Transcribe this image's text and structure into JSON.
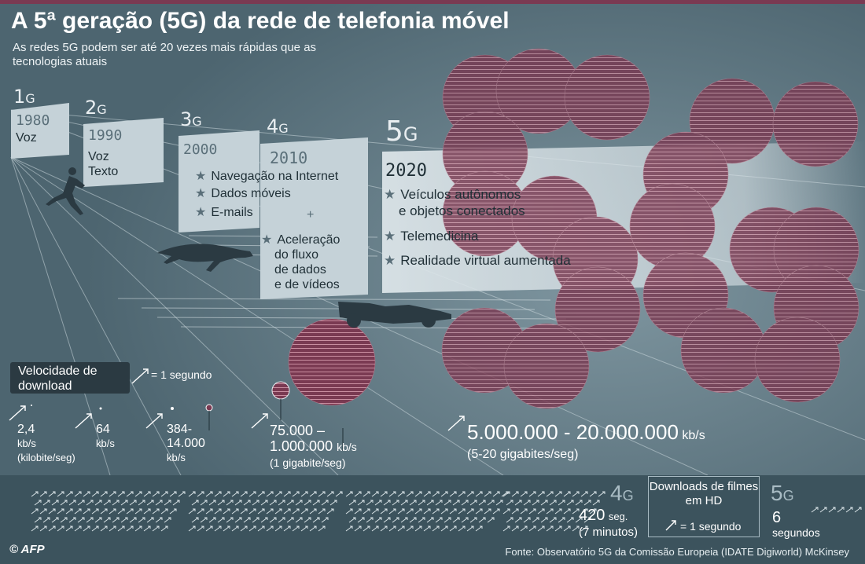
{
  "title": "A 5ª geração (5G) da rede de telefonia móvel",
  "subtitle": "As redes 5G podem ser até 20 vezes mais rápidas que as tecnologias atuais",
  "generations": [
    {
      "num": "1",
      "g": "G",
      "year": "1980",
      "uses": [
        "Voz"
      ]
    },
    {
      "num": "2",
      "g": "G",
      "year": "1990",
      "uses": [
        "Voz",
        "Texto"
      ]
    },
    {
      "num": "3",
      "g": "G",
      "year": "2000",
      "uses": [
        "Navegação na Internet",
        "Dados móveis",
        "E-mails"
      ]
    },
    {
      "num": "4",
      "g": "G",
      "year": "2010",
      "uses": [
        "Aceleração",
        "do fluxo",
        "de dados",
        "e de vídeos"
      ]
    },
    {
      "num": "5",
      "g": "G",
      "year": "2020",
      "uses": [
        "Veículos autônomos",
        "e objetos conectados",
        "Telemedicina",
        "Realidade virtual aumentada"
      ]
    }
  ],
  "plus_sign": "+",
  "legend": {
    "title": "Velocidade de download",
    "unit": "= 1 segundo"
  },
  "speeds": {
    "g1": {
      "value": "2,4",
      "unit": "kb/s",
      "note": "(kilobite/seg)"
    },
    "g2": {
      "value": "64",
      "unit": "kb/s"
    },
    "g3": {
      "value_a": "384-",
      "value_b": "14.000",
      "unit": "kb/s"
    },
    "g4": {
      "value_a": "75.000 –",
      "value_b": "1.000.000",
      "unit": "kb/s",
      "note": "(1 gigabite/seg)"
    },
    "g5": {
      "value": "5.000.000 - 20.000.000",
      "unit": "kb/s",
      "note": "(5-20 gigabites/seg)"
    }
  },
  "downloads": {
    "title": "Downloads de filmes em HD",
    "unit": "= 1 segundo",
    "g4_label": "4",
    "g4_g": "G",
    "g4_time": "420",
    "g4_time_unit": "seg.",
    "g4_minutes": "(7 minutos)",
    "g5_label": "5",
    "g5_g": "G",
    "g5_time": "6",
    "g5_time_unit": "segundos"
  },
  "source": "Fonte: Observatório 5G da Comissão Europeia (IDATE Digiworld) McKinsey",
  "credit": "© AFP",
  "colors": {
    "background": "#4d6570",
    "panel": "#c5d2d8",
    "circle": "#7a3a52",
    "dark_box": "#2b3a42"
  },
  "icons": [
    "runner-icon",
    "cheetah-icon",
    "race-car-icon",
    "arrow-icon"
  ]
}
